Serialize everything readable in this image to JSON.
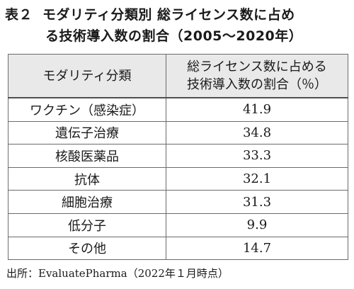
{
  "title": {
    "label": "表２",
    "line1": "モダリティ分類別 総ライセンス数に占め",
    "line2": "る技術導入数の割合（2005～2020年）"
  },
  "table": {
    "headers": {
      "col1": "モダリティ分類",
      "col2_line1": "総ライセンス数に占める",
      "col2_line2": "技術導入数の割合（％）"
    },
    "rows": [
      {
        "modality": "ワクチン（感染症）",
        "share": "41.9"
      },
      {
        "modality": "遺伝子治療",
        "share": "34.8"
      },
      {
        "modality": "核酸医薬品",
        "share": "33.3"
      },
      {
        "modality": "抗体",
        "share": "32.1"
      },
      {
        "modality": "細胞治療",
        "share": "31.3"
      },
      {
        "modality": "低分子",
        "share": "9.9"
      },
      {
        "modality": "その他",
        "share": "14.7"
      }
    ]
  },
  "source": "出所：EvaluatePharma（2022年１月時点）",
  "colors": {
    "header_bg": "#e9e9e9",
    "border": "#6b6b6b",
    "text": "#1a1a1a"
  }
}
